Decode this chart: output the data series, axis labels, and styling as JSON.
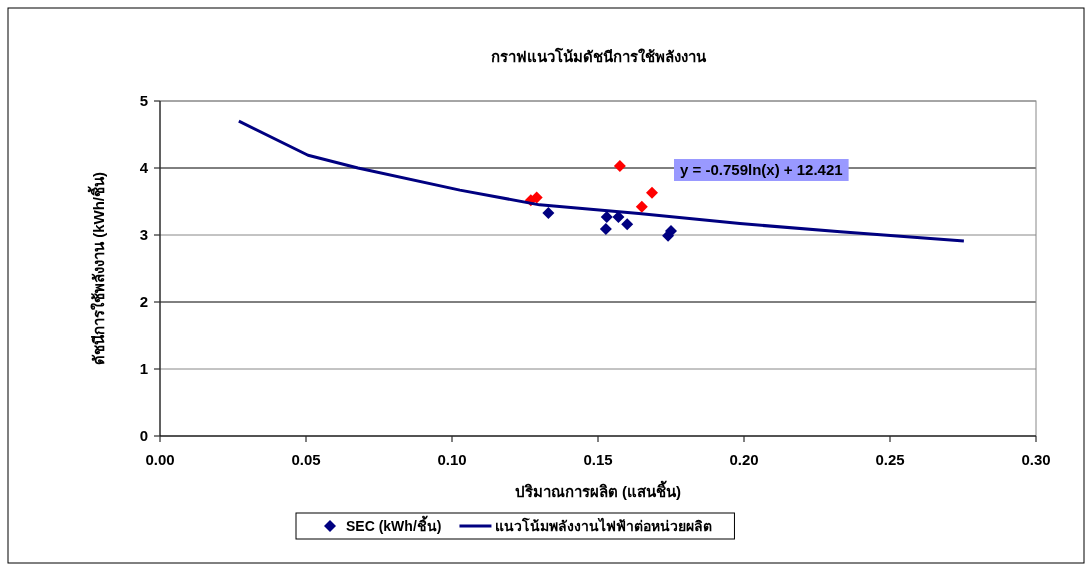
{
  "chart_data": {
    "type": "scatter",
    "title": "กราฟแนวโน้มดัชนีการใช้พลังงาน",
    "xlabel": "ปริมาณการผลิต (แสนชิ้น)",
    "ylabel": "ดัชนีการใช้พลังงาน (kWh/ชิ้น)",
    "annotations": [
      "y = -0.759ln(x) + 12.421"
    ],
    "xlim": [
      0,
      0.3
    ],
    "xticks": [
      {
        "value": 0,
        "label": "0.00"
      },
      {
        "value": 0.05,
        "label": "0.05"
      },
      {
        "value": 0.1,
        "label": "0.10"
      },
      {
        "value": 0.15,
        "label": "0.15"
      },
      {
        "value": 0.2,
        "label": "0.20"
      },
      {
        "value": 0.25,
        "label": "0.25"
      },
      {
        "value": 0.3,
        "label": "0.30"
      }
    ],
    "ylim": [
      0,
      5
    ],
    "yticks": [
      0,
      1,
      2,
      3,
      4,
      5
    ],
    "grid": "y",
    "legend": "bottom",
    "marker": "diamond",
    "series": [
      {
        "name": "SEC (kWh/ชิ้น)",
        "type": "scatter",
        "color": "#000080",
        "x": [
          0.127,
          0.129,
          0.1575,
          0.165,
          0.1685,
          0.133,
          0.153,
          0.157,
          0.1527,
          0.16,
          0.175,
          0.174
        ],
        "values": [
          3.52,
          3.56,
          4.03,
          3.42,
          3.63,
          3.33,
          3.27,
          3.27,
          3.09,
          3.16,
          3.06,
          2.99
        ],
        "colors": [
          "#ff0000",
          "#ff0000",
          "#ff0000",
          "#ff0000",
          "#ff0000",
          "#000080",
          "#000080",
          "#000080",
          "#000080",
          "#000080",
          "#000080",
          "#000080"
        ]
      },
      {
        "name": "แนวโน้มพลังงานไฟฟ้าต่อหน่วยผลิต",
        "type": "line",
        "color": "#000080",
        "marker": "none",
        "x": [
          0.027,
          0.0507,
          0.0678,
          0.1027,
          0.13,
          0.164,
          0.1986,
          0.233,
          0.2753
        ],
        "values": [
          4.7,
          4.19,
          4.0,
          3.67,
          3.45,
          3.32,
          3.17,
          3.05,
          2.91
        ]
      }
    ]
  }
}
